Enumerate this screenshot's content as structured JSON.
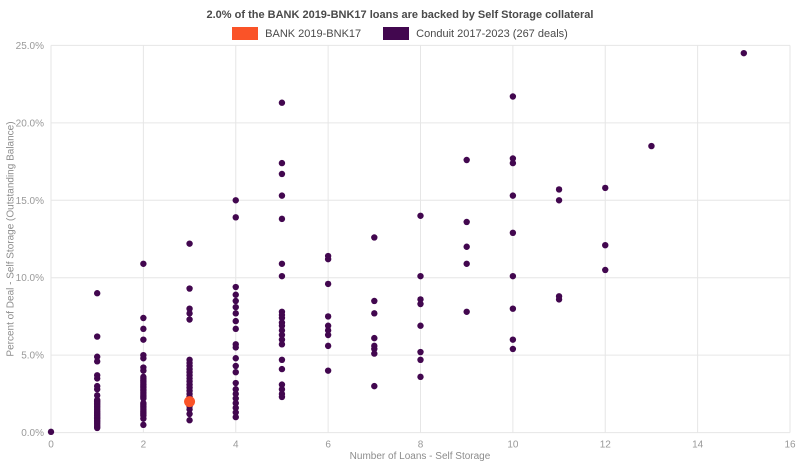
{
  "title": "2.0% of the BANK 2019-BNK17 loans are backed by Self Storage collateral",
  "legend": {
    "items": [
      {
        "label": "BANK 2019-BNK17",
        "color": "#fa5328"
      },
      {
        "label": "Conduit 2017-2023 (267 deals)",
        "color": "#42074f"
      }
    ]
  },
  "chart_data": {
    "type": "scatter",
    "title": "2.0% of the BANK 2019-BNK17 loans are backed by Self Storage collateral",
    "xlabel": "Number of Loans - Self Storage",
    "ylabel": "Percent of Deal - Self Storage (Outstanding Balance)",
    "xlim": [
      0,
      16
    ],
    "ylim": [
      0,
      25
    ],
    "x_ticks": {
      "values": [
        0,
        2,
        4,
        6,
        8,
        10,
        12,
        14,
        16
      ],
      "labels": [
        "0",
        "2",
        "4",
        "6",
        "8",
        "10",
        "12",
        "14",
        "16"
      ]
    },
    "y_ticks": {
      "values": [
        0,
        5,
        10,
        15,
        20,
        25
      ],
      "labels": [
        "0.0%",
        "5.0%",
        "10.0%",
        "15.0%",
        "20.0%",
        "25.0%"
      ]
    },
    "grid": true,
    "legend_position": "top",
    "grid_color": "#e6e6e6",
    "tick_color": "#999999",
    "series": [
      {
        "name": "BANK 2019-BNK17",
        "color": "#fa5328",
        "marker_radius": 5.5,
        "points": [
          [
            3,
            2.0
          ]
        ]
      },
      {
        "name": "Conduit 2017-2023 (267 deals)",
        "color": "#42074f",
        "marker_radius": 3.2,
        "points": [
          [
            0,
            0.05
          ],
          [
            1,
            9.0
          ],
          [
            1,
            6.2
          ],
          [
            1,
            4.9
          ],
          [
            1,
            4.6
          ],
          [
            1,
            3.7
          ],
          [
            1,
            3.5
          ],
          [
            1,
            3.0
          ],
          [
            1,
            2.8
          ],
          [
            1,
            2.4
          ],
          [
            1,
            2.1
          ],
          [
            1,
            2.0
          ],
          [
            1,
            1.9
          ],
          [
            1,
            1.8
          ],
          [
            1,
            1.7
          ],
          [
            1,
            1.6
          ],
          [
            1,
            1.5
          ],
          [
            1,
            1.4
          ],
          [
            1,
            1.3
          ],
          [
            1,
            1.2
          ],
          [
            1,
            1.1
          ],
          [
            1,
            1.0
          ],
          [
            1,
            0.9
          ],
          [
            1,
            0.8
          ],
          [
            1,
            0.7
          ],
          [
            1,
            0.6
          ],
          [
            1,
            0.5
          ],
          [
            1,
            0.4
          ],
          [
            1,
            0.3
          ],
          [
            2,
            10.9
          ],
          [
            2,
            7.4
          ],
          [
            2,
            6.7
          ],
          [
            2,
            6.0
          ],
          [
            2,
            5.0
          ],
          [
            2,
            4.8
          ],
          [
            2,
            4.2
          ],
          [
            2,
            4.0
          ],
          [
            2,
            3.6
          ],
          [
            2,
            3.5
          ],
          [
            2,
            3.4
          ],
          [
            2,
            3.3
          ],
          [
            2,
            3.2
          ],
          [
            2,
            3.1
          ],
          [
            2,
            3.0
          ],
          [
            2,
            2.9
          ],
          [
            2,
            2.8
          ],
          [
            2,
            2.7
          ],
          [
            2,
            2.6
          ],
          [
            2,
            2.5
          ],
          [
            2,
            2.4
          ],
          [
            2,
            2.3
          ],
          [
            2,
            2.2
          ],
          [
            2,
            1.9
          ],
          [
            2,
            1.8
          ],
          [
            2,
            1.7
          ],
          [
            2,
            1.6
          ],
          [
            2,
            1.5
          ],
          [
            2,
            1.4
          ],
          [
            2,
            1.3
          ],
          [
            2,
            1.2
          ],
          [
            2,
            1.1
          ],
          [
            2,
            0.9
          ],
          [
            2,
            0.5
          ],
          [
            3,
            12.2
          ],
          [
            3,
            9.3
          ],
          [
            3,
            8.0
          ],
          [
            3,
            7.7
          ],
          [
            3,
            7.3
          ],
          [
            3,
            4.7
          ],
          [
            3,
            4.5
          ],
          [
            3,
            4.3
          ],
          [
            3,
            4.1
          ],
          [
            3,
            3.9
          ],
          [
            3,
            3.7
          ],
          [
            3,
            3.5
          ],
          [
            3,
            3.3
          ],
          [
            3,
            3.1
          ],
          [
            3,
            2.9
          ],
          [
            3,
            2.7
          ],
          [
            3,
            2.5
          ],
          [
            3,
            2.3
          ],
          [
            3,
            2.1
          ],
          [
            3,
            1.9
          ],
          [
            3,
            1.7
          ],
          [
            3,
            1.5
          ],
          [
            3,
            1.2
          ],
          [
            3,
            0.8
          ],
          [
            4,
            15.0
          ],
          [
            4,
            13.9
          ],
          [
            4,
            9.4
          ],
          [
            4,
            8.9
          ],
          [
            4,
            8.5
          ],
          [
            4,
            8.1
          ],
          [
            4,
            7.7
          ],
          [
            4,
            7.2
          ],
          [
            4,
            6.7
          ],
          [
            4,
            5.7
          ],
          [
            4,
            5.5
          ],
          [
            4,
            4.8
          ],
          [
            4,
            4.3
          ],
          [
            4,
            3.9
          ],
          [
            4,
            3.2
          ],
          [
            4,
            2.8
          ],
          [
            4,
            2.5
          ],
          [
            4,
            2.2
          ],
          [
            4,
            1.9
          ],
          [
            4,
            1.6
          ],
          [
            4,
            1.3
          ],
          [
            4,
            1.0
          ],
          [
            5,
            21.3
          ],
          [
            5,
            17.4
          ],
          [
            5,
            16.7
          ],
          [
            5,
            15.3
          ],
          [
            5,
            13.8
          ],
          [
            5,
            10.9
          ],
          [
            5,
            10.1
          ],
          [
            5,
            7.8
          ],
          [
            5,
            7.6
          ],
          [
            5,
            7.4
          ],
          [
            5,
            7.1
          ],
          [
            5,
            6.9
          ],
          [
            5,
            6.6
          ],
          [
            5,
            6.3
          ],
          [
            5,
            6.0
          ],
          [
            5,
            5.7
          ],
          [
            5,
            4.7
          ],
          [
            5,
            4.1
          ],
          [
            5,
            3.1
          ],
          [
            5,
            2.8
          ],
          [
            5,
            2.5
          ],
          [
            5,
            2.3
          ],
          [
            6,
            11.4
          ],
          [
            6,
            11.2
          ],
          [
            6,
            9.6
          ],
          [
            6,
            7.5
          ],
          [
            6,
            6.9
          ],
          [
            6,
            6.6
          ],
          [
            6,
            6.3
          ],
          [
            6,
            5.6
          ],
          [
            6,
            4.0
          ],
          [
            7,
            12.6
          ],
          [
            7,
            8.5
          ],
          [
            7,
            7.7
          ],
          [
            7,
            6.1
          ],
          [
            7,
            5.6
          ],
          [
            7,
            5.4
          ],
          [
            7,
            5.1
          ],
          [
            7,
            3.0
          ],
          [
            8,
            14.0
          ],
          [
            8,
            10.1
          ],
          [
            8,
            8.6
          ],
          [
            8,
            8.3
          ],
          [
            8,
            6.9
          ],
          [
            8,
            5.2
          ],
          [
            8,
            4.7
          ],
          [
            8,
            3.6
          ],
          [
            9,
            17.6
          ],
          [
            9,
            13.6
          ],
          [
            9,
            12.0
          ],
          [
            9,
            10.9
          ],
          [
            9,
            7.8
          ],
          [
            10,
            21.7
          ],
          [
            10,
            17.7
          ],
          [
            10,
            17.4
          ],
          [
            10,
            15.3
          ],
          [
            10,
            12.9
          ],
          [
            10,
            10.1
          ],
          [
            10,
            8.0
          ],
          [
            10,
            6.0
          ],
          [
            10,
            5.4
          ],
          [
            11,
            15.7
          ],
          [
            11,
            15.0
          ],
          [
            11,
            8.8
          ],
          [
            11,
            8.6
          ],
          [
            12,
            15.8
          ],
          [
            12,
            12.1
          ],
          [
            12,
            10.5
          ],
          [
            13,
            18.5
          ],
          [
            15,
            24.5
          ]
        ]
      }
    ]
  }
}
